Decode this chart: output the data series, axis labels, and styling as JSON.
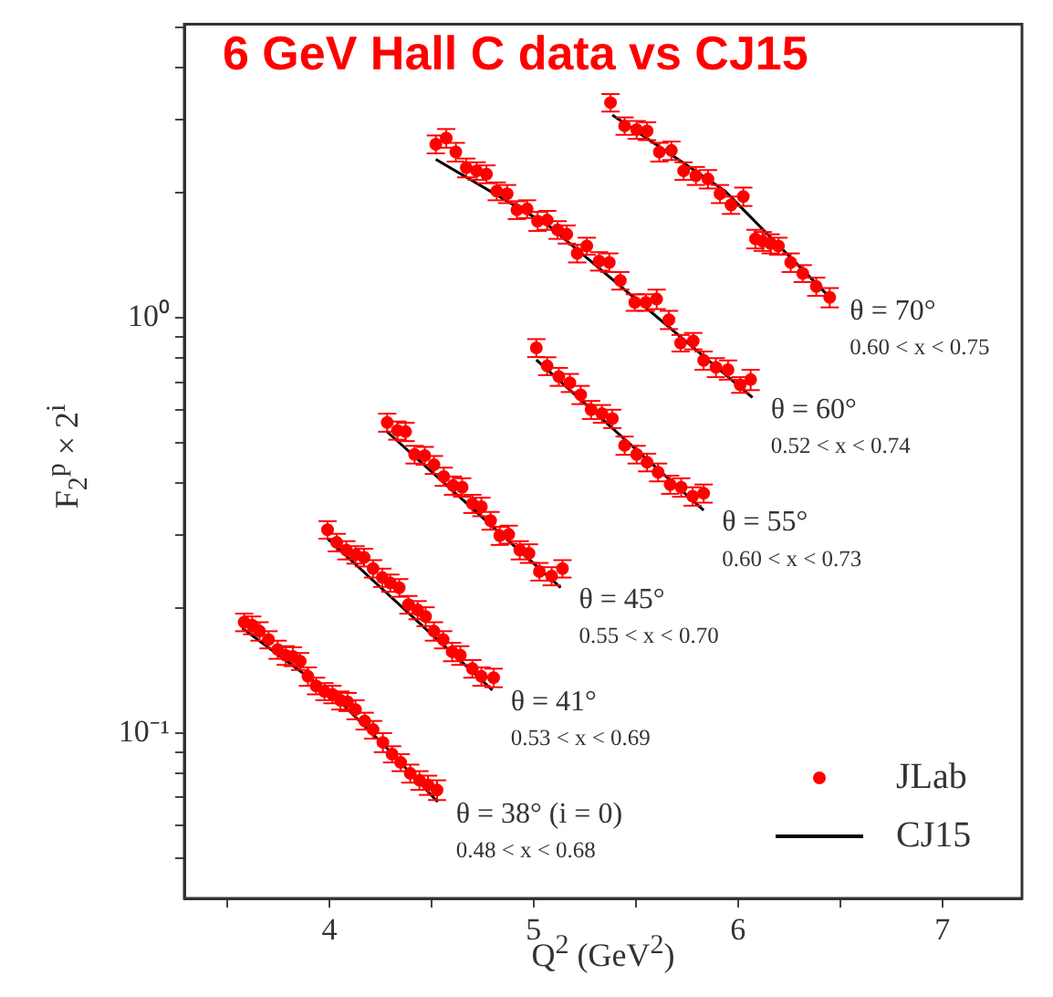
{
  "chart_data": {
    "type": "scatter",
    "title": "6 GeV Hall C data vs CJ15",
    "xlabel": "Q$^{2}$ (GeV$^{2}$)",
    "ylabel": "F$_{2}$$^{p}$ × 2$^{i}$",
    "xlim": [
      3.29,
      7.39
    ],
    "xticks": [
      {
        "value": 3.5,
        "label": null
      },
      4,
      {
        "value": 4.5,
        "label": null
      },
      5,
      {
        "value": 5.5,
        "label": null
      },
      6,
      {
        "value": 6.5,
        "label": null
      },
      7
    ],
    "ylim": [
      0.04,
      5.1
    ],
    "yticks": [
      {
        "value": 0.05,
        "label": null
      },
      {
        "value": 0.06,
        "label": null
      },
      {
        "value": 0.07,
        "label": null
      },
      {
        "value": 0.08,
        "label": null
      },
      {
        "value": 0.09,
        "label": null
      },
      {
        "value": 0.1,
        "label": "10⁻¹"
      },
      {
        "value": 0.2,
        "label": null
      },
      {
        "value": 0.3,
        "label": null
      },
      {
        "value": 0.4,
        "label": null
      },
      {
        "value": 0.5,
        "label": null
      },
      {
        "value": 0.6,
        "label": null
      },
      {
        "value": 0.7,
        "label": null
      },
      {
        "value": 0.8,
        "label": null
      },
      {
        "value": 0.9,
        "label": null
      },
      {
        "value": 1,
        "label": "10⁰"
      },
      {
        "value": 2,
        "label": null
      },
      {
        "value": 3,
        "label": null
      },
      {
        "value": 4,
        "label": null
      },
      {
        "value": 5,
        "label": null
      }
    ],
    "log": "y",
    "legend": "bottom right",
    "annotations": [
      "θ = 38° (i = 0)\n0.48 < x < 0.68",
      "θ = 41°\n0.53 < x < 0.69",
      "θ = 45°\n0.55 < x < 0.70",
      "θ = 55°\n0.60 < x < 0.73",
      "θ = 60°\n0.52 < x < 0.74",
      "θ = 70°\n0.60 < x < 0.75"
    ],
    "series": [
      {
        "name": "JLab",
        "color": "#ff0000",
        "marker": "circle",
        "x": [
          3.583,
          3.622,
          3.658,
          3.702,
          3.747,
          3.786,
          3.821,
          3.857,
          3.895,
          3.935,
          3.976,
          4.015,
          4.054,
          4.089,
          4.128,
          4.173,
          4.214,
          4.262,
          4.307,
          4.349,
          4.396,
          4.441,
          4.483,
          4.527,
          3.991,
          4.036,
          4.083,
          4.128,
          4.17,
          4.214,
          4.259,
          4.298,
          4.342,
          4.387,
          4.432,
          4.471,
          4.512,
          4.557,
          4.601,
          4.641,
          4.7,
          4.744,
          4.804,
          4.283,
          4.333,
          4.373,
          4.417,
          4.467,
          4.512,
          4.56,
          4.605,
          4.65,
          4.7,
          4.744,
          4.789,
          4.834,
          4.878,
          4.932,
          4.977,
          5.028,
          5.088,
          5.141,
          5.013,
          5.066,
          5.123,
          5.177,
          5.23,
          5.281,
          5.334,
          5.385,
          5.445,
          5.504,
          5.555,
          5.609,
          5.668,
          5.722,
          5.778,
          5.832,
          4.521,
          4.572,
          4.619,
          4.67,
          4.721,
          4.769,
          4.819,
          4.87,
          4.918,
          4.968,
          5.019,
          5.066,
          5.117,
          5.162,
          5.213,
          5.26,
          5.32,
          5.37,
          5.424,
          5.495,
          5.549,
          5.602,
          5.662,
          5.719,
          5.781,
          5.832,
          5.892,
          5.951,
          6.011,
          6.062,
          5.376,
          5.445,
          5.504,
          5.555,
          5.615,
          5.674,
          5.734,
          5.794,
          5.853,
          5.912,
          5.966,
          6.026,
          6.085,
          6.121,
          6.16,
          6.198,
          6.258,
          6.317,
          6.383,
          6.449
        ],
        "values": [
          0.185,
          0.182,
          0.176,
          0.168,
          0.159,
          0.154,
          0.153,
          0.149,
          0.137,
          0.13,
          0.126,
          0.124,
          0.12,
          0.119,
          0.114,
          0.107,
          0.102,
          0.095,
          0.089,
          0.085,
          0.08,
          0.077,
          0.075,
          0.073,
          0.309,
          0.288,
          0.276,
          0.269,
          0.265,
          0.249,
          0.237,
          0.23,
          0.224,
          0.204,
          0.198,
          0.191,
          0.176,
          0.168,
          0.157,
          0.154,
          0.143,
          0.137,
          0.136,
          0.56,
          0.536,
          0.532,
          0.469,
          0.466,
          0.443,
          0.415,
          0.395,
          0.391,
          0.357,
          0.351,
          0.325,
          0.299,
          0.301,
          0.276,
          0.271,
          0.245,
          0.239,
          0.249,
          0.847,
          0.766,
          0.722,
          0.698,
          0.653,
          0.601,
          0.588,
          0.572,
          0.493,
          0.469,
          0.449,
          0.425,
          0.397,
          0.391,
          0.372,
          0.378,
          2.62,
          2.71,
          2.51,
          2.3,
          2.26,
          2.22,
          2.02,
          1.99,
          1.82,
          1.83,
          1.71,
          1.72,
          1.63,
          1.59,
          1.43,
          1.49,
          1.37,
          1.36,
          1.23,
          1.09,
          1.09,
          1.11,
          0.99,
          0.87,
          0.88,
          0.79,
          0.76,
          0.75,
          0.69,
          0.71,
          3.3,
          2.9,
          2.84,
          2.82,
          2.51,
          2.53,
          2.26,
          2.2,
          2.16,
          1.99,
          1.87,
          1.96,
          1.55,
          1.53,
          1.51,
          1.49,
          1.36,
          1.28,
          1.19,
          1.12
        ],
        "errors": [
          0.009,
          0.009,
          0.009,
          0.008,
          0.008,
          0.008,
          0.008,
          0.007,
          0.007,
          0.006,
          0.006,
          0.006,
          0.006,
          0.006,
          0.006,
          0.005,
          0.005,
          0.005,
          0.004,
          0.004,
          0.004,
          0.004,
          0.004,
          0.004,
          0.015,
          0.014,
          0.014,
          0.013,
          0.013,
          0.012,
          0.012,
          0.011,
          0.011,
          0.01,
          0.01,
          0.01,
          0.009,
          0.008,
          0.008,
          0.008,
          0.007,
          0.007,
          0.007,
          0.028,
          0.027,
          0.027,
          0.023,
          0.023,
          0.022,
          0.021,
          0.02,
          0.02,
          0.018,
          0.018,
          0.016,
          0.015,
          0.015,
          0.014,
          0.014,
          0.012,
          0.012,
          0.012,
          0.042,
          0.038,
          0.036,
          0.035,
          0.033,
          0.03,
          0.029,
          0.029,
          0.025,
          0.023,
          0.022,
          0.021,
          0.02,
          0.02,
          0.019,
          0.019,
          0.13,
          0.14,
          0.13,
          0.12,
          0.11,
          0.11,
          0.1,
          0.1,
          0.09,
          0.09,
          0.09,
          0.09,
          0.08,
          0.08,
          0.07,
          0.07,
          0.07,
          0.07,
          0.06,
          0.05,
          0.05,
          0.06,
          0.05,
          0.04,
          0.04,
          0.04,
          0.04,
          0.04,
          0.03,
          0.04,
          0.16,
          0.14,
          0.14,
          0.14,
          0.13,
          0.13,
          0.11,
          0.11,
          0.11,
          0.1,
          0.09,
          0.1,
          0.08,
          0.08,
          0.08,
          0.07,
          0.07,
          0.06,
          0.06,
          0.06
        ]
      },
      {
        "name": "CJ15",
        "type": "line",
        "color": "#000000",
        "marker": "none",
        "x": [
          3.574,
          4.03,
          4.268,
          4.53,
          null,
          3.991,
          4.798,
          null,
          4.277,
          5.132,
          null,
          5.013,
          5.832,
          null,
          4.521,
          5.072,
          6.071,
          null,
          5.385,
          5.937,
          6.458
        ],
        "values": [
          0.179,
          0.122,
          0.0935,
          0.0683,
          null,
          0.294,
          0.127,
          null,
          0.535,
          0.224,
          null,
          0.793,
          0.344,
          null,
          2.41,
          1.67,
          0.643,
          null,
          3.08,
          2.02,
          1.11
        ]
      }
    ]
  }
}
